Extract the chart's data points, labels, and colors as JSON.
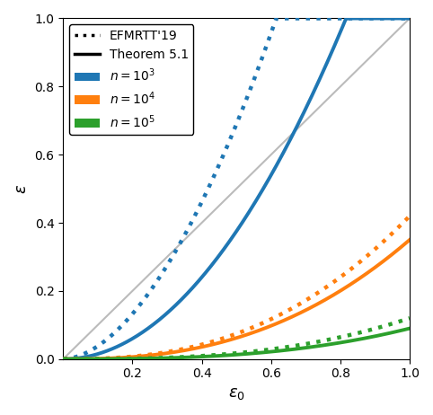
{
  "n_values": [
    1000,
    10000,
    100000
  ],
  "colors": [
    "#1f77b4",
    "#ff7f0e",
    "#2ca02c"
  ],
  "x_min": 0.0,
  "x_max": 1.0,
  "y_min": 0.0,
  "y_max": 1.0,
  "xlabel": "$\\varepsilon_0$",
  "ylabel": "$\\varepsilon$",
  "diag_color": "#bbbbbb",
  "linewidth_solid": 2.8,
  "linewidth_dotted": 3.2,
  "num_points": 500,
  "delta": 1e-06
}
